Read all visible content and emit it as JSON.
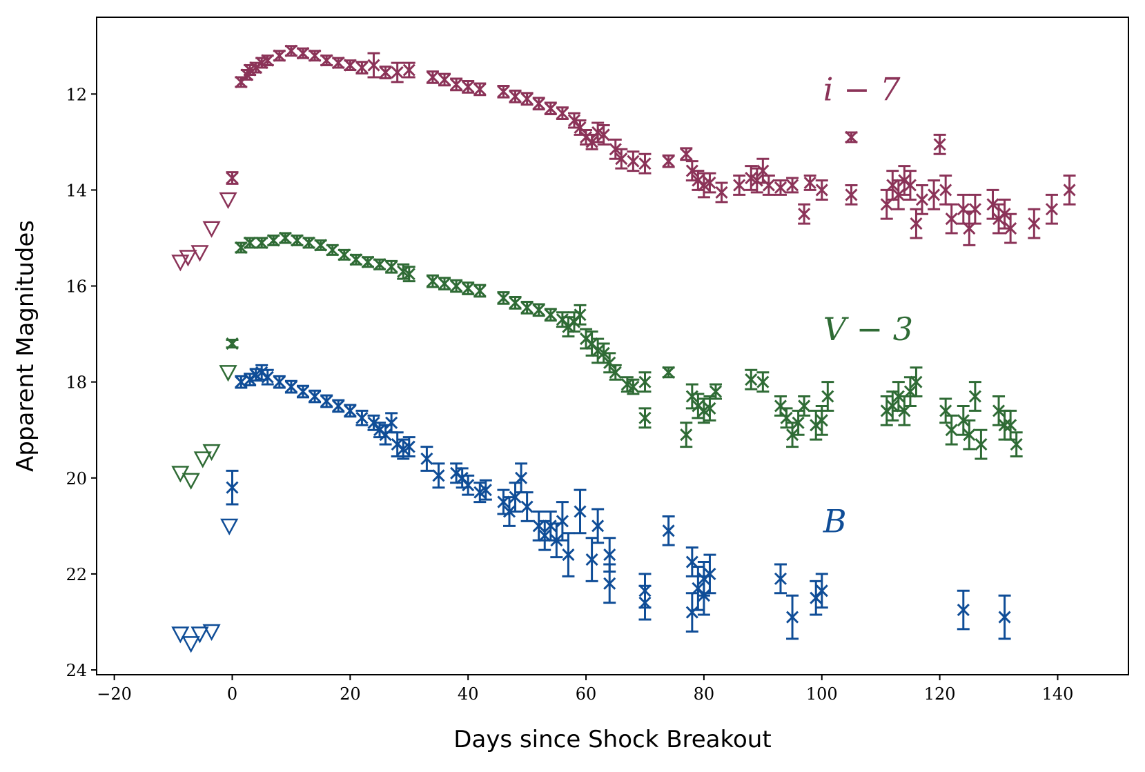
{
  "chart_data": {
    "type": "scatter",
    "title": "",
    "xlabel": "Days since Shock Breakout",
    "ylabel": "Apparent Magnitudes",
    "xlim": [
      -23,
      152
    ],
    "ylim": [
      24.1,
      10.4
    ],
    "y_inverted": true,
    "grid": false,
    "xticks": [
      -20,
      0,
      20,
      40,
      60,
      80,
      100,
      120,
      140
    ],
    "xtick_labels": [
      "−20",
      "0",
      "20",
      "40",
      "60",
      "80",
      "100",
      "120",
      "140"
    ],
    "yticks": [
      12,
      14,
      16,
      18,
      20,
      22,
      24
    ],
    "ytick_labels": [
      "12",
      "14",
      "16",
      "18",
      "20",
      "22",
      "24"
    ],
    "series": [
      {
        "name": "i − 7",
        "label": "i − 7",
        "color": "#8b3358",
        "label_at": [
          100,
          11.9
        ],
        "upper_limits": [
          [
            -8.8,
            15.5
          ],
          [
            -7.5,
            15.4
          ],
          [
            -5.5,
            15.3
          ],
          [
            -3.5,
            14.8
          ],
          [
            -0.7,
            14.2
          ]
        ],
        "points": [
          [
            0,
            13.75,
            0.12
          ],
          [
            1.5,
            11.75,
            0.1
          ],
          [
            2.5,
            11.6,
            0.1
          ],
          [
            3,
            11.5,
            0.1
          ],
          [
            4,
            11.45,
            0.1
          ],
          [
            5,
            11.35,
            0.1
          ],
          [
            6,
            11.3,
            0.1
          ],
          [
            8,
            11.2,
            0.1
          ],
          [
            10,
            11.1,
            0.1
          ],
          [
            12,
            11.15,
            0.1
          ],
          [
            14,
            11.2,
            0.1
          ],
          [
            16,
            11.3,
            0.1
          ],
          [
            18,
            11.35,
            0.1
          ],
          [
            20,
            11.4,
            0.1
          ],
          [
            22,
            11.45,
            0.12
          ],
          [
            24,
            11.4,
            0.25
          ],
          [
            26,
            11.55,
            0.12
          ],
          [
            28,
            11.55,
            0.2
          ],
          [
            30,
            11.5,
            0.15
          ],
          [
            34,
            11.65,
            0.12
          ],
          [
            36,
            11.7,
            0.12
          ],
          [
            38,
            11.8,
            0.12
          ],
          [
            40,
            11.85,
            0.12
          ],
          [
            42,
            11.9,
            0.12
          ],
          [
            46,
            11.95,
            0.12
          ],
          [
            48,
            12.05,
            0.12
          ],
          [
            50,
            12.1,
            0.12
          ],
          [
            52,
            12.2,
            0.12
          ],
          [
            54,
            12.3,
            0.12
          ],
          [
            56,
            12.4,
            0.12
          ],
          [
            58,
            12.55,
            0.15
          ],
          [
            59,
            12.7,
            0.15
          ],
          [
            60,
            12.9,
            0.15
          ],
          [
            61,
            13.0,
            0.15
          ],
          [
            62,
            12.8,
            0.2
          ],
          [
            63,
            12.85,
            0.2
          ],
          [
            65,
            13.15,
            0.2
          ],
          [
            66,
            13.35,
            0.2
          ],
          [
            68,
            13.4,
            0.2
          ],
          [
            70,
            13.45,
            0.2
          ],
          [
            74,
            13.4,
            0.12
          ],
          [
            77,
            13.25,
            0.12
          ],
          [
            78,
            13.6,
            0.2
          ],
          [
            79,
            13.8,
            0.2
          ],
          [
            80,
            13.9,
            0.25
          ],
          [
            81,
            13.85,
            0.2
          ],
          [
            83,
            14.05,
            0.2
          ],
          [
            86,
            13.9,
            0.2
          ],
          [
            88,
            13.75,
            0.25
          ],
          [
            89,
            13.8,
            0.25
          ],
          [
            90,
            13.6,
            0.25
          ],
          [
            91,
            13.9,
            0.2
          ],
          [
            93,
            13.95,
            0.15
          ],
          [
            95,
            13.9,
            0.15
          ],
          [
            97,
            14.5,
            0.2
          ],
          [
            98,
            13.85,
            0.15
          ],
          [
            100,
            14.0,
            0.2
          ],
          [
            105,
            12.9,
            0.1
          ],
          [
            105,
            14.1,
            0.2
          ],
          [
            111,
            14.3,
            0.3
          ],
          [
            112,
            13.9,
            0.3
          ],
          [
            113,
            14.1,
            0.3
          ],
          [
            114,
            13.8,
            0.3
          ],
          [
            115,
            13.9,
            0.3
          ],
          [
            116,
            14.7,
            0.3
          ],
          [
            117,
            14.2,
            0.3
          ],
          [
            119,
            14.1,
            0.3
          ],
          [
            120,
            13.05,
            0.2
          ],
          [
            121,
            14.0,
            0.3
          ],
          [
            122,
            14.6,
            0.3
          ],
          [
            124,
            14.4,
            0.3
          ],
          [
            125,
            14.8,
            0.35
          ],
          [
            126,
            14.4,
            0.3
          ],
          [
            129,
            14.3,
            0.3
          ],
          [
            130,
            14.6,
            0.3
          ],
          [
            131,
            14.5,
            0.3
          ],
          [
            132,
            14.8,
            0.3
          ],
          [
            136,
            14.7,
            0.3
          ],
          [
            139,
            14.4,
            0.3
          ],
          [
            142,
            14.0,
            0.3
          ]
        ]
      },
      {
        "name": "V − 3",
        "label": "V − 3",
        "color": "#2f6b35",
        "label_at": [
          100,
          16.9
        ],
        "upper_limits": [
          [
            -8.8,
            19.9
          ],
          [
            -7,
            20.05
          ],
          [
            -5,
            19.6
          ],
          [
            -3.5,
            19.45
          ],
          [
            -0.7,
            17.8
          ]
        ],
        "points": [
          [
            0,
            17.2,
            0.08
          ],
          [
            1.5,
            15.2,
            0.1
          ],
          [
            3,
            15.1,
            0.1
          ],
          [
            5,
            15.1,
            0.1
          ],
          [
            7,
            15.05,
            0.1
          ],
          [
            9,
            15.0,
            0.1
          ],
          [
            11,
            15.05,
            0.1
          ],
          [
            13,
            15.1,
            0.1
          ],
          [
            15,
            15.15,
            0.1
          ],
          [
            17,
            15.25,
            0.1
          ],
          [
            19,
            15.35,
            0.1
          ],
          [
            21,
            15.45,
            0.1
          ],
          [
            23,
            15.5,
            0.1
          ],
          [
            25,
            15.55,
            0.1
          ],
          [
            27,
            15.6,
            0.12
          ],
          [
            29,
            15.7,
            0.15
          ],
          [
            30,
            15.75,
            0.15
          ],
          [
            34,
            15.9,
            0.12
          ],
          [
            36,
            15.95,
            0.12
          ],
          [
            38,
            16.0,
            0.12
          ],
          [
            40,
            16.05,
            0.12
          ],
          [
            42,
            16.1,
            0.12
          ],
          [
            46,
            16.25,
            0.12
          ],
          [
            48,
            16.35,
            0.12
          ],
          [
            50,
            16.45,
            0.12
          ],
          [
            52,
            16.5,
            0.12
          ],
          [
            54,
            16.6,
            0.12
          ],
          [
            56,
            16.7,
            0.15
          ],
          [
            57,
            16.85,
            0.2
          ],
          [
            58,
            16.75,
            0.2
          ],
          [
            59,
            16.6,
            0.2
          ],
          [
            60,
            17.1,
            0.2
          ],
          [
            61,
            17.2,
            0.25
          ],
          [
            62,
            17.35,
            0.25
          ],
          [
            63,
            17.4,
            0.2
          ],
          [
            64,
            17.6,
            0.2
          ],
          [
            65,
            17.8,
            0.15
          ],
          [
            67,
            18.05,
            0.15
          ],
          [
            68,
            18.1,
            0.15
          ],
          [
            70,
            18.0,
            0.2
          ],
          [
            70,
            18.75,
            0.2
          ],
          [
            74,
            17.8,
            0.1
          ],
          [
            77,
            19.1,
            0.25
          ],
          [
            78,
            18.3,
            0.25
          ],
          [
            79,
            18.5,
            0.25
          ],
          [
            80,
            18.6,
            0.25
          ],
          [
            81,
            18.55,
            0.25
          ],
          [
            82,
            18.2,
            0.15
          ],
          [
            88,
            17.95,
            0.2
          ],
          [
            90,
            18.0,
            0.2
          ],
          [
            93,
            18.5,
            0.2
          ],
          [
            94,
            18.75,
            0.2
          ],
          [
            95,
            19.1,
            0.25
          ],
          [
            96,
            18.85,
            0.25
          ],
          [
            97,
            18.5,
            0.2
          ],
          [
            99,
            18.9,
            0.3
          ],
          [
            100,
            18.8,
            0.3
          ],
          [
            101,
            18.3,
            0.3
          ],
          [
            111,
            18.6,
            0.3
          ],
          [
            112,
            18.5,
            0.3
          ],
          [
            113,
            18.3,
            0.3
          ],
          [
            114,
            18.6,
            0.3
          ],
          [
            115,
            18.2,
            0.3
          ],
          [
            116,
            18.0,
            0.3
          ],
          [
            121,
            18.6,
            0.25
          ],
          [
            122,
            19.0,
            0.3
          ],
          [
            124,
            18.8,
            0.3
          ],
          [
            125,
            19.1,
            0.3
          ],
          [
            126,
            18.3,
            0.3
          ],
          [
            127,
            19.3,
            0.3
          ],
          [
            130,
            18.6,
            0.3
          ],
          [
            131,
            18.9,
            0.3
          ],
          [
            132,
            18.9,
            0.3
          ],
          [
            133,
            19.3,
            0.25
          ]
        ]
      },
      {
        "name": "B",
        "label": "B",
        "color": "#0f4d97",
        "label_at": [
          100,
          20.9
        ],
        "upper_limits": [
          [
            -8.8,
            23.25
          ],
          [
            -7,
            23.45
          ],
          [
            -5.5,
            23.25
          ],
          [
            -3.5,
            23.2
          ],
          [
            -0.5,
            21.0
          ]
        ],
        "points": [
          [
            0,
            20.2,
            0.35
          ],
          [
            1.5,
            18.0,
            0.12
          ],
          [
            3,
            17.95,
            0.12
          ],
          [
            4,
            17.85,
            0.12
          ],
          [
            5,
            17.8,
            0.15
          ],
          [
            6,
            17.9,
            0.15
          ],
          [
            8,
            18.0,
            0.12
          ],
          [
            10,
            18.1,
            0.12
          ],
          [
            12,
            18.2,
            0.12
          ],
          [
            14,
            18.3,
            0.12
          ],
          [
            16,
            18.4,
            0.12
          ],
          [
            18,
            18.5,
            0.12
          ],
          [
            20,
            18.6,
            0.12
          ],
          [
            22,
            18.75,
            0.15
          ],
          [
            24,
            18.85,
            0.15
          ],
          [
            25,
            19.0,
            0.15
          ],
          [
            26,
            19.1,
            0.2
          ],
          [
            27,
            18.85,
            0.2
          ],
          [
            28,
            19.3,
            0.25
          ],
          [
            29,
            19.4,
            0.2
          ],
          [
            30,
            19.35,
            0.2
          ],
          [
            33,
            19.6,
            0.25
          ],
          [
            35,
            19.95,
            0.25
          ],
          [
            38,
            19.9,
            0.2
          ],
          [
            39,
            20.0,
            0.2
          ],
          [
            40,
            20.15,
            0.2
          ],
          [
            42,
            20.3,
            0.2
          ],
          [
            43,
            20.25,
            0.2
          ],
          [
            46,
            20.5,
            0.25
          ],
          [
            47,
            20.7,
            0.3
          ],
          [
            48,
            20.4,
            0.3
          ],
          [
            49,
            20.0,
            0.3
          ],
          [
            50,
            20.6,
            0.3
          ],
          [
            52,
            21.0,
            0.3
          ],
          [
            53,
            21.2,
            0.3
          ],
          [
            54,
            21.0,
            0.3
          ],
          [
            55,
            21.3,
            0.35
          ],
          [
            56,
            20.9,
            0.4
          ],
          [
            57,
            21.6,
            0.45
          ],
          [
            59,
            20.7,
            0.45
          ],
          [
            61,
            21.7,
            0.45
          ],
          [
            62,
            21.0,
            0.35
          ],
          [
            64,
            21.6,
            0.35
          ],
          [
            64,
            22.2,
            0.4
          ],
          [
            70,
            22.35,
            0.35
          ],
          [
            70,
            22.6,
            0.35
          ],
          [
            74,
            21.1,
            0.3
          ],
          [
            78,
            21.75,
            0.3
          ],
          [
            78,
            22.8,
            0.4
          ],
          [
            79,
            22.3,
            0.45
          ],
          [
            80,
            22.1,
            0.35
          ],
          [
            80,
            22.45,
            0.4
          ],
          [
            81,
            22.0,
            0.4
          ],
          [
            93,
            22.1,
            0.3
          ],
          [
            95,
            22.9,
            0.45
          ],
          [
            99,
            22.5,
            0.35
          ],
          [
            100,
            22.35,
            0.35
          ],
          [
            124,
            22.75,
            0.4
          ],
          [
            131,
            22.9,
            0.45
          ]
        ]
      }
    ]
  }
}
